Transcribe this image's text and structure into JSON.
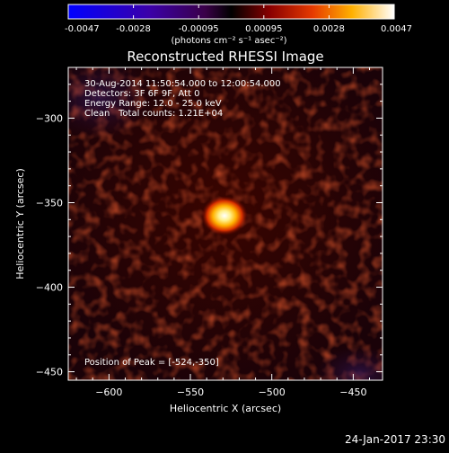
{
  "colorbar": {
    "tick_labels": [
      "-0.0047",
      "-0.0028",
      "-0.00095",
      "0.00095",
      "0.0028",
      "0.0047"
    ],
    "units_label": "(photons cm⁻² s⁻¹ asec⁻²)",
    "range": [
      -0.0047,
      0.0047
    ]
  },
  "plot": {
    "title": "Reconstructed RHESSI Image",
    "xlabel": "Heliocentric X (arcsec)",
    "ylabel": "Heliocentric Y (arcsec)",
    "x_ticks": [
      "−600",
      "−550",
      "−500",
      "−450"
    ],
    "y_ticks": [
      "−300",
      "−350",
      "−400",
      "−450"
    ],
    "x_tick_values": [
      -600,
      -550,
      -500,
      -450
    ],
    "y_tick_values": [
      -300,
      -350,
      -400,
      -450
    ],
    "xlim": [
      -625,
      -432
    ],
    "ylim": [
      -455,
      -270
    ]
  },
  "info": {
    "time_range": "30-Aug-2014 11:50:54.000 to 12:00:54.000",
    "detectors": "Detectors: 3F 6F 9F, Att 0",
    "energy": "Energy Range: 12.0 - 25.0 keV",
    "clean": "Clean",
    "total_counts": "Total counts: 1.21E+04"
  },
  "peak": {
    "label": "Position of Peak = [-524,-350]",
    "x": -524,
    "y": -350
  },
  "footer": {
    "timestamp": "24-Jan-2017 23:30"
  }
}
